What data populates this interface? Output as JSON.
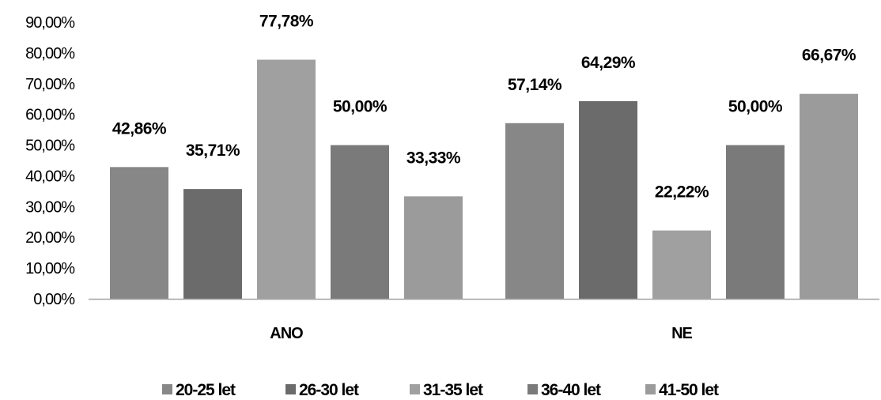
{
  "chart_data": {
    "type": "bar",
    "title": "",
    "xlabel": "",
    "ylabel": "",
    "categories": [
      "ANO",
      "NE"
    ],
    "ylim": [
      0,
      90
    ],
    "yticks": [
      "0,00%",
      "10,00%",
      "20,00%",
      "30,00%",
      "40,00%",
      "50,00%",
      "60,00%",
      "70,00%",
      "80,00%",
      "90,00%"
    ],
    "grid": false,
    "legend_position": "bottom",
    "series": [
      {
        "name": "20-25 let",
        "color": "#878787",
        "values": [
          42.86,
          57.14
        ],
        "labels": [
          "42,86%",
          "57,14%"
        ]
      },
      {
        "name": "26-30 let",
        "color": "#6b6b6b",
        "values": [
          35.71,
          64.29
        ],
        "labels": [
          "35,71%",
          "64,29%"
        ]
      },
      {
        "name": "31-35 let",
        "color": "#a0a0a0",
        "values": [
          77.78,
          22.22
        ],
        "labels": [
          "77,78%",
          "22,22%"
        ]
      },
      {
        "name": "36-40 let",
        "color": "#7a7a7a",
        "values": [
          50.0,
          50.0
        ],
        "labels": [
          "50,00%",
          "50,00%"
        ]
      },
      {
        "name": "41-50 let",
        "color": "#9b9b9b",
        "values": [
          33.33,
          66.67
        ],
        "labels": [
          "33,33%",
          "66,67%"
        ]
      }
    ],
    "axis_color": "#a6a6a6"
  }
}
